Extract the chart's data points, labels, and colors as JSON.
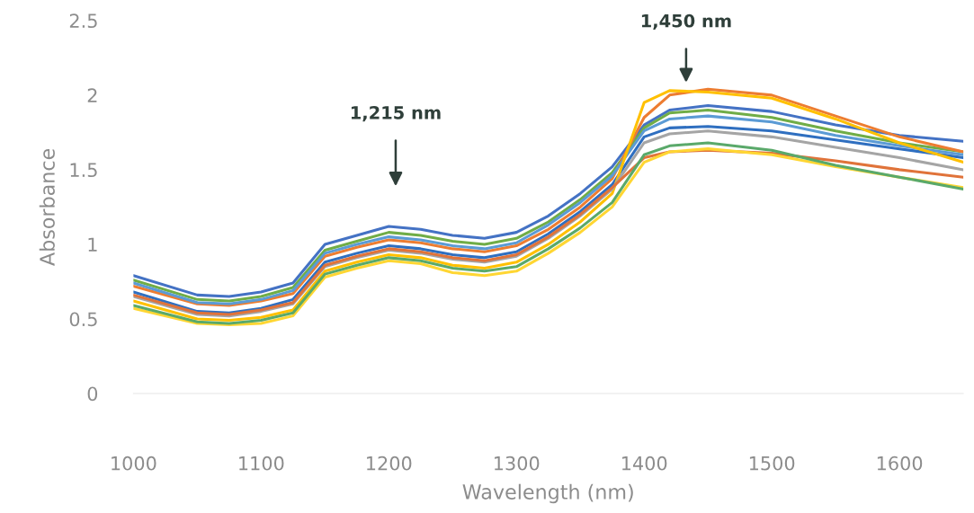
{
  "chart_data": {
    "type": "line",
    "xlabel": "Wavelength (nm)",
    "ylabel": "Absorbance",
    "x": [
      1000,
      1050,
      1075,
      1100,
      1125,
      1150,
      1175,
      1200,
      1225,
      1250,
      1275,
      1300,
      1325,
      1350,
      1375,
      1400,
      1420,
      1450,
      1500,
      1550,
      1600,
      1650
    ],
    "xlim": [
      1000,
      1650
    ],
    "xticks": [
      1000,
      1100,
      1200,
      1300,
      1400,
      1500,
      1600
    ],
    "ylim": [
      0,
      2.5
    ],
    "yticks": [
      0,
      0.5,
      1,
      1.5,
      2,
      2.5
    ],
    "grid": false,
    "legend": false,
    "marker": "none",
    "line_style": "solid",
    "series": [
      {
        "color": "#4472c4",
        "values": [
          0.79,
          0.66,
          0.65,
          0.68,
          0.74,
          1.0,
          1.06,
          1.12,
          1.1,
          1.06,
          1.04,
          1.08,
          1.19,
          1.34,
          1.52,
          1.8,
          1.9,
          1.93,
          1.89,
          1.8,
          1.73,
          1.69
        ]
      },
      {
        "color": "#70ad47",
        "values": [
          0.76,
          0.63,
          0.62,
          0.65,
          0.71,
          0.96,
          1.02,
          1.08,
          1.06,
          1.02,
          1.0,
          1.04,
          1.15,
          1.3,
          1.48,
          1.78,
          1.88,
          1.9,
          1.85,
          1.76,
          1.68,
          1.62
        ]
      },
      {
        "color": "#ed7d31",
        "values": [
          0.72,
          0.6,
          0.59,
          0.62,
          0.67,
          0.92,
          0.98,
          1.03,
          1.01,
          0.97,
          0.95,
          0.99,
          1.1,
          1.25,
          1.44,
          1.85,
          2.0,
          2.04,
          2.0,
          1.86,
          1.72,
          1.62
        ]
      },
      {
        "color": "#5b9bd5",
        "values": [
          0.74,
          0.61,
          0.6,
          0.63,
          0.69,
          0.94,
          1.0,
          1.05,
          1.03,
          0.99,
          0.97,
          1.01,
          1.13,
          1.28,
          1.46,
          1.76,
          1.84,
          1.86,
          1.82,
          1.73,
          1.66,
          1.6
        ]
      },
      {
        "color": "#2f6fc0",
        "values": [
          0.68,
          0.55,
          0.54,
          0.57,
          0.63,
          0.88,
          0.94,
          0.99,
          0.97,
          0.93,
          0.91,
          0.95,
          1.07,
          1.22,
          1.4,
          1.72,
          1.78,
          1.79,
          1.76,
          1.7,
          1.64,
          1.58
        ]
      },
      {
        "color": "#ffc000",
        "values": [
          0.62,
          0.5,
          0.49,
          0.51,
          0.56,
          0.82,
          0.88,
          0.93,
          0.91,
          0.86,
          0.84,
          0.88,
          1.0,
          1.15,
          1.34,
          1.95,
          2.03,
          2.02,
          1.98,
          1.84,
          1.68,
          1.55
        ]
      },
      {
        "color": "#a5a5a5",
        "values": [
          0.65,
          0.53,
          0.52,
          0.55,
          0.6,
          0.85,
          0.91,
          0.96,
          0.94,
          0.9,
          0.88,
          0.92,
          1.04,
          1.19,
          1.37,
          1.68,
          1.74,
          1.76,
          1.72,
          1.65,
          1.58,
          1.5
        ]
      },
      {
        "color": "#e0733a",
        "values": [
          0.66,
          0.54,
          0.53,
          0.56,
          0.61,
          0.86,
          0.92,
          0.97,
          0.95,
          0.91,
          0.89,
          0.93,
          1.05,
          1.2,
          1.38,
          1.58,
          1.62,
          1.63,
          1.61,
          1.56,
          1.5,
          1.45
        ]
      },
      {
        "color": "#ffd633",
        "values": [
          0.57,
          0.47,
          0.46,
          0.47,
          0.52,
          0.78,
          0.84,
          0.89,
          0.87,
          0.81,
          0.79,
          0.82,
          0.94,
          1.08,
          1.25,
          1.55,
          1.62,
          1.64,
          1.6,
          1.52,
          1.45,
          1.38
        ]
      },
      {
        "color": "#5aa96a",
        "values": [
          0.59,
          0.48,
          0.47,
          0.49,
          0.54,
          0.8,
          0.86,
          0.91,
          0.89,
          0.84,
          0.82,
          0.85,
          0.97,
          1.11,
          1.28,
          1.6,
          1.66,
          1.68,
          1.63,
          1.53,
          1.45,
          1.37
        ]
      }
    ],
    "annotations": [
      "1,215 nm",
      "1,450 nm"
    ]
  }
}
